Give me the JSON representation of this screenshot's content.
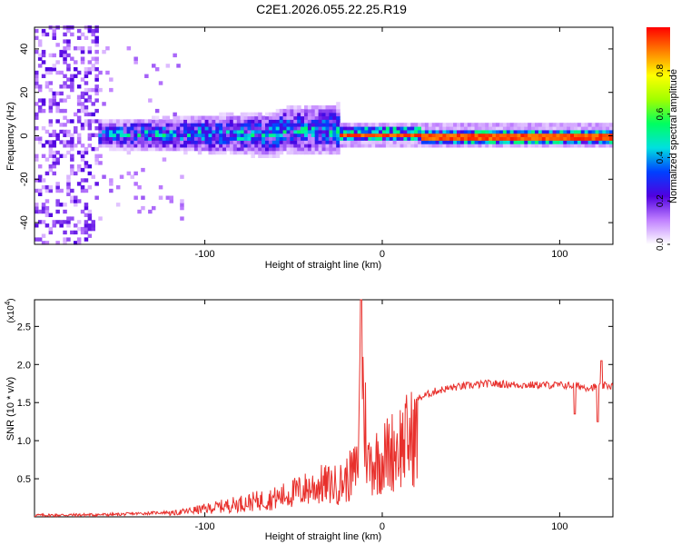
{
  "title": "C2E1.2026.055.22.25.R19",
  "chart_data": [
    {
      "type": "heatmap",
      "xlabel": "Height of straight line (km)",
      "ylabel": "Frequency (Hz)",
      "xlim": [
        -196,
        130
      ],
      "ylim": [
        -50,
        50
      ],
      "xticks": [
        -100,
        0,
        100
      ],
      "xtick_labels": [
        "-100",
        "0",
        "100"
      ],
      "yticks": [
        -40,
        -20,
        0,
        20,
        40
      ],
      "ytick_labels": [
        "-40",
        "-20",
        "0",
        "20",
        "40"
      ],
      "colorbar": {
        "label": "Normalized spectral amplitude",
        "range": [
          0.0,
          1.0
        ],
        "ticks": [
          0.0,
          0.2,
          0.4,
          0.6,
          0.8
        ],
        "tick_labels": [
          "0.0",
          "0.2",
          "0.4",
          "0.6",
          "0.8"
        ],
        "colormap": [
          "#ffffff",
          "#c080ff",
          "#5000e0",
          "#0040ff",
          "#00e0e0",
          "#00ff60",
          "#a0ff00",
          "#ffff00",
          "#ff8000",
          "#ff0000"
        ]
      },
      "description_regions": [
        {
          "x_range": [
            -196,
            -160
          ],
          "freq_spread": 50,
          "amplitude": 0.25
        },
        {
          "x_range": [
            -160,
            -25
          ],
          "freq_center": 0,
          "freq_spread": 10,
          "amplitude": 0.4
        },
        {
          "x_range": [
            -25,
            130
          ],
          "freq_center": 0,
          "freq_spread": 2,
          "amplitude": 0.95
        }
      ]
    },
    {
      "type": "line",
      "xlabel": "Height of straight line (km)",
      "ylabel": "SNR (10 * v/v)",
      "y_multiplier": "(x10",
      "y_multiplier_exp": "4",
      "y_multiplier_close": ")",
      "xlim": [
        -196,
        130
      ],
      "ylim": [
        0,
        2.85
      ],
      "xticks": [
        -100,
        0,
        100
      ],
      "xtick_labels": [
        "-100",
        "0",
        "100"
      ],
      "yticks": [
        0.5,
        1.0,
        1.5,
        2.0,
        2.5
      ],
      "ytick_labels": [
        "0.5",
        "1.0",
        "1.5",
        "2.0",
        "2.5"
      ],
      "color": "#e8302c",
      "series": [
        {
          "name": "SNR",
          "x": [
            -196,
            -150,
            -120,
            -100,
            -80,
            -60,
            -45,
            -35,
            -25,
            -20,
            -14,
            -12,
            -8,
            0,
            10,
            20,
            30,
            40,
            60,
            80,
            100,
            110,
            115,
            120,
            125,
            130
          ],
          "y": [
            0.02,
            0.03,
            0.06,
            0.15,
            0.25,
            0.35,
            0.5,
            0.6,
            0.6,
            0.7,
            0.9,
            2.85,
            1.0,
            1.1,
            1.35,
            1.55,
            1.65,
            1.7,
            1.75,
            1.73,
            1.73,
            1.72,
            1.7,
            1.7,
            1.72,
            1.72
          ]
        }
      ]
    }
  ]
}
